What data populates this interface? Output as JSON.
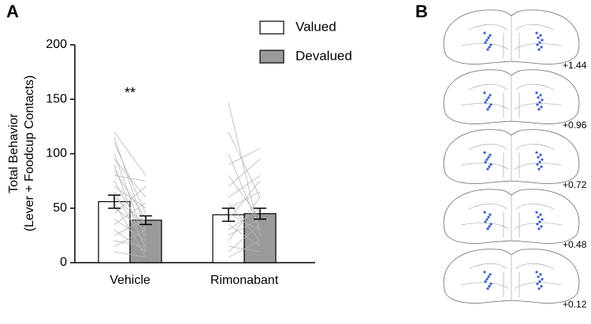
{
  "panel_labels": [
    "A",
    "B"
  ],
  "chart_data": {
    "type": "bar",
    "y_label": [
      "Total Behavior",
      "(Lever + Foodcup  Contacts)"
    ],
    "categories": [
      "Vehicle",
      "Rimonabant"
    ],
    "series": [
      {
        "name": "Valued",
        "color": "#ffffff",
        "values": [
          56,
          44
        ],
        "errors": [
          6,
          6
        ]
      },
      {
        "name": "Devalued",
        "color": "#9a9a9a",
        "values": [
          39,
          45
        ],
        "errors": [
          4,
          5
        ]
      }
    ],
    "individuals": [
      [
        [
          120,
          80
        ],
        [
          115,
          30
        ],
        [
          110,
          45
        ],
        [
          100,
          20
        ],
        [
          95,
          60
        ],
        [
          90,
          10
        ],
        [
          85,
          40
        ],
        [
          80,
          75
        ],
        [
          75,
          25
        ],
        [
          70,
          50
        ],
        [
          65,
          15
        ],
        [
          60,
          35
        ],
        [
          55,
          5
        ],
        [
          50,
          30
        ],
        [
          45,
          70
        ],
        [
          40,
          20
        ],
        [
          35,
          55
        ],
        [
          30,
          10
        ],
        [
          25,
          40
        ],
        [
          20,
          15
        ],
        [
          15,
          30
        ],
        [
          10,
          5
        ]
      ],
      [
        [
          147,
          25
        ],
        [
          120,
          60
        ],
        [
          100,
          30
        ],
        [
          90,
          105
        ],
        [
          80,
          40
        ],
        [
          70,
          95
        ],
        [
          60,
          80
        ],
        [
          55,
          20
        ],
        [
          50,
          65
        ],
        [
          45,
          30
        ],
        [
          40,
          75
        ],
        [
          35,
          15
        ],
        [
          30,
          50
        ],
        [
          25,
          40
        ],
        [
          20,
          60
        ],
        [
          15,
          10
        ],
        [
          10,
          35
        ],
        [
          5,
          20
        ]
      ]
    ],
    "annotation": {
      "text": "**",
      "category": 0,
      "y": 155
    },
    "ylim": [
      0,
      200
    ],
    "yticks": [
      0,
      50,
      100,
      150,
      200
    ]
  },
  "sections": [
    "+1.44",
    "+0.96",
    "+0.72",
    "+0.48",
    "+0.12"
  ]
}
